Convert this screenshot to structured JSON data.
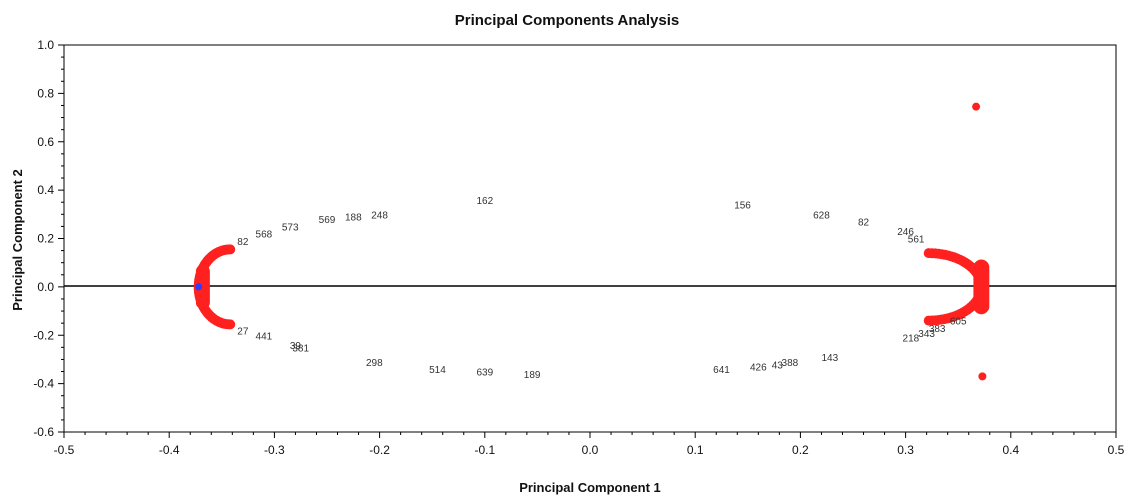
{
  "chart_data": {
    "type": "scatter",
    "title": "Principal Components Analysis",
    "xlabel": "Principal Component 1",
    "ylabel": "Principal Component 2",
    "xlim": [
      -0.5,
      0.5
    ],
    "ylim": [
      -0.6,
      1.0
    ],
    "xticks": [
      "-0.5",
      "-0.4",
      "-0.3",
      "-0.2",
      "-0.1",
      "0.0",
      "0.1",
      "0.2",
      "0.3",
      "0.4",
      "0.5"
    ],
    "yticks": [
      "1.0",
      "0.8",
      "0.6",
      "0.4",
      "0.2",
      "0.0",
      "-0.2",
      "-0.4",
      "-0.6"
    ],
    "grid": false,
    "legend": "none",
    "colors": {
      "points": "#ff2020",
      "highlight": "#2d3cff",
      "labels": "#333333",
      "axes": "#000000"
    },
    "labeled_points": [
      {
        "label": "162",
        "x": -0.1,
        "y": 0.36
      },
      {
        "label": "248",
        "x": -0.2,
        "y": 0.3
      },
      {
        "label": "188",
        "x": -0.225,
        "y": 0.29
      },
      {
        "label": "569",
        "x": -0.25,
        "y": 0.28
      },
      {
        "label": "573",
        "x": -0.285,
        "y": 0.25
      },
      {
        "label": "568",
        "x": -0.31,
        "y": 0.22
      },
      {
        "label": "82",
        "x": -0.33,
        "y": 0.19
      },
      {
        "label": "156",
        "x": 0.145,
        "y": 0.34
      },
      {
        "label": "628",
        "x": 0.22,
        "y": 0.3
      },
      {
        "label": "82",
        "x": 0.26,
        "y": 0.27
      },
      {
        "label": "246",
        "x": 0.3,
        "y": 0.23
      },
      {
        "label": "561",
        "x": 0.31,
        "y": 0.2
      },
      {
        "label": "441",
        "x": -0.31,
        "y": -0.2
      },
      {
        "label": "27",
        "x": -0.33,
        "y": -0.18
      },
      {
        "label": "381",
        "x": -0.275,
        "y": -0.25
      },
      {
        "label": "39",
        "x": -0.28,
        "y": -0.24
      },
      {
        "label": "298",
        "x": -0.205,
        "y": -0.31
      },
      {
        "label": "514",
        "x": -0.145,
        "y": -0.34
      },
      {
        "label": "639",
        "x": -0.1,
        "y": -0.35
      },
      {
        "label": "189",
        "x": -0.055,
        "y": -0.36
      },
      {
        "label": "641",
        "x": 0.125,
        "y": -0.34
      },
      {
        "label": "426",
        "x": 0.16,
        "y": -0.33
      },
      {
        "label": "43",
        "x": 0.178,
        "y": -0.32
      },
      {
        "label": "388",
        "x": 0.19,
        "y": -0.31
      },
      {
        "label": "143",
        "x": 0.228,
        "y": -0.29
      },
      {
        "label": "218",
        "x": 0.305,
        "y": -0.21
      },
      {
        "label": "343",
        "x": 0.32,
        "y": -0.19
      },
      {
        "label": "383",
        "x": 0.33,
        "y": -0.17
      },
      {
        "label": "605",
        "x": 0.35,
        "y": -0.14
      }
    ],
    "outliers": [
      {
        "x": 0.367,
        "y": 0.745
      },
      {
        "x": 0.373,
        "y": -0.37
      }
    ],
    "highlight_point": {
      "x": -0.372,
      "y": 0.0
    }
  }
}
